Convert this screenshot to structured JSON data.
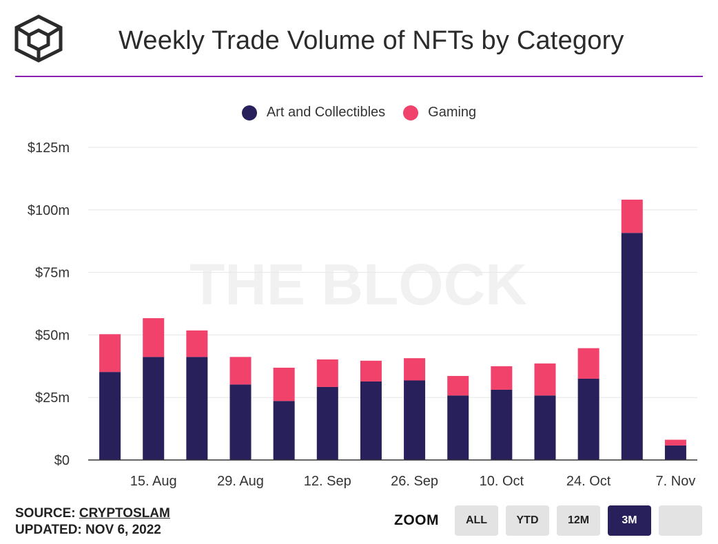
{
  "header": {
    "title": "Weekly Trade Volume of NFTs by Category",
    "logo_icon": "the-block-cube-icon",
    "accent_color": "#8a1fb0"
  },
  "footer": {
    "source_label": "SOURCE:",
    "source_name": "CRYPTOSLAM",
    "updated": "UPDATED: NOV 6, 2022"
  },
  "zoom": {
    "label": "ZOOM",
    "buttons": [
      "ALL",
      "YTD",
      "12M",
      "3M",
      ""
    ],
    "active": "3M"
  },
  "chart_data": {
    "type": "bar",
    "stacked": true,
    "watermark": "THE BLOCK",
    "legend_position": "top-center",
    "grid": true,
    "ylim": [
      0,
      125
    ],
    "yticks": [
      0,
      25,
      50,
      75,
      100,
      125
    ],
    "ytick_labels": [
      "$0",
      "$25m",
      "$50m",
      "$75m",
      "$100m",
      "$125m"
    ],
    "x_tick_labels": [
      "15. Aug",
      "29. Aug",
      "12. Sep",
      "26. Sep",
      "10. Oct",
      "24. Oct",
      "7. Nov"
    ],
    "x_tick_positions": [
      1.5,
      3.5,
      5.5,
      7.5,
      9.5,
      11.5,
      13.5
    ],
    "bar_count": 14,
    "series": [
      {
        "name": "Art and Collectibles",
        "color": "#28205a",
        "values": [
          35.2,
          41.2,
          41.2,
          30.2,
          23.6,
          29.2,
          31.4,
          31.8,
          25.8,
          28.1,
          25.8,
          32.5,
          90.8,
          5.8
        ]
      },
      {
        "name": "Gaming",
        "color": "#f0426b",
        "values": [
          15.1,
          15.5,
          10.6,
          11.0,
          13.3,
          11.0,
          8.3,
          8.9,
          7.8,
          9.4,
          12.8,
          12.2,
          13.3,
          2.3
        ]
      }
    ]
  }
}
